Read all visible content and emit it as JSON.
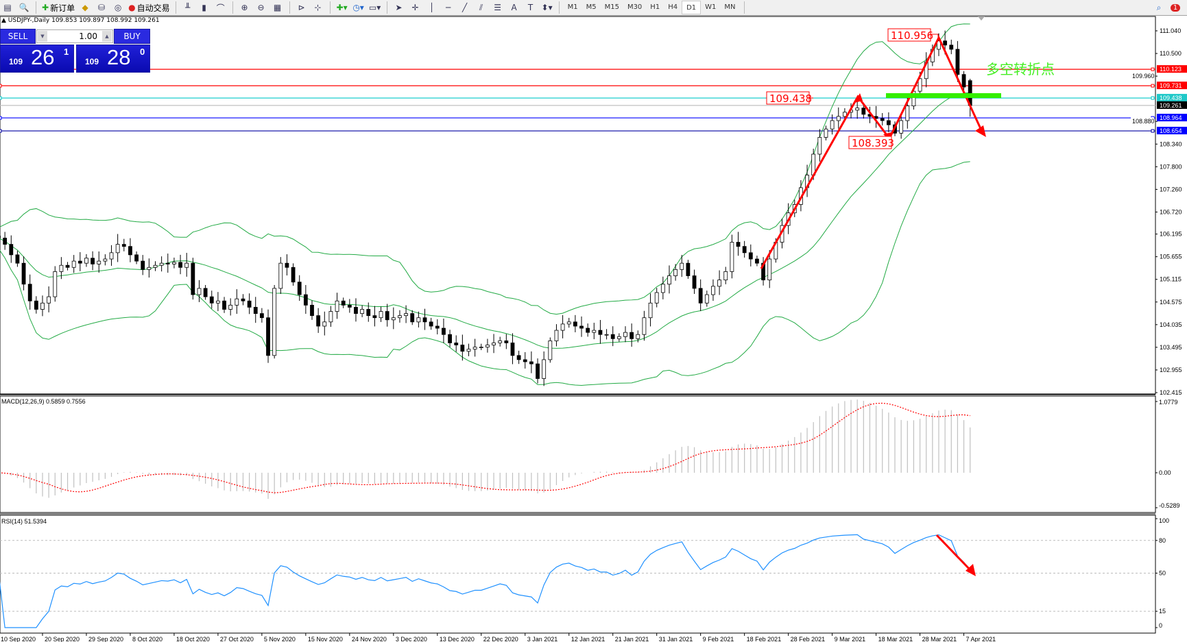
{
  "toolbar": {
    "new_order_label": "新订单",
    "auto_trading_label": "自动交易",
    "timeframes": [
      "M1",
      "M5",
      "M15",
      "M30",
      "H1",
      "H4",
      "D1",
      "W1",
      "MN"
    ],
    "active_timeframe": "D1",
    "notification_count": "1"
  },
  "chart_header": {
    "symbol": "USDJPY-,Daily",
    "ohlc": "109.853 109.897 108.992 109.261"
  },
  "one_click": {
    "sell_label": "SELL",
    "buy_label": "BUY",
    "lots": "1.00",
    "sell_price": {
      "small": "109",
      "big": "26",
      "frac": "1"
    },
    "buy_price": {
      "small": "109",
      "big": "28",
      "frac": "0"
    }
  },
  "price_chart": {
    "closes": [
      106.1,
      105.95,
      105.7,
      105.5,
      105.0,
      104.6,
      104.4,
      104.55,
      104.7,
      105.3,
      105.45,
      105.4,
      105.55,
      105.5,
      105.62,
      105.48,
      105.55,
      105.6,
      105.75,
      105.95,
      105.9,
      105.7,
      105.55,
      105.35,
      105.4,
      105.45,
      105.5,
      105.48,
      105.52,
      105.4,
      105.5,
      104.75,
      104.9,
      104.7,
      104.55,
      104.6,
      104.4,
      104.5,
      104.65,
      104.6,
      104.45,
      104.3,
      104.2,
      103.3,
      104.9,
      105.5,
      105.4,
      105.05,
      104.75,
      104.5,
      104.25,
      104.0,
      104.1,
      104.35,
      104.6,
      104.5,
      104.45,
      104.3,
      104.4,
      104.25,
      104.2,
      104.35,
      104.15,
      104.2,
      104.25,
      104.3,
      104.1,
      104.2,
      104.1,
      104.0,
      103.95,
      103.8,
      103.6,
      103.55,
      103.4,
      103.45,
      103.5,
      103.5,
      103.55,
      103.6,
      103.65,
      103.6,
      103.3,
      103.2,
      103.15,
      103.1,
      102.75,
      103.2,
      103.65,
      103.9,
      104.05,
      104.1,
      104.0,
      103.95,
      103.85,
      103.9,
      103.8,
      103.8,
      103.7,
      103.75,
      103.85,
      103.7,
      103.8,
      104.2,
      104.55,
      104.8,
      105.0,
      105.2,
      105.35,
      105.5,
      105.2,
      104.9,
      104.55,
      104.75,
      104.95,
      105.1,
      105.3,
      106.0,
      105.9,
      105.75,
      105.6,
      105.5,
      105.1,
      105.6,
      106.0,
      106.4,
      106.7,
      106.9,
      107.3,
      107.6,
      108.1,
      108.5,
      108.7,
      108.9,
      109.0,
      109.1,
      109.15,
      109.2,
      109.05,
      109.0,
      108.95,
      108.9,
      108.8,
      108.6,
      108.9,
      109.25,
      109.6,
      109.9,
      110.3,
      110.6,
      110.8,
      110.7,
      110.6,
      110.0,
      109.7,
      109.261
    ],
    "last_bar": {
      "open": 109.853,
      "high": 109.897,
      "low": 108.992,
      "close": 109.261
    },
    "price_ticks": [
      "111.040",
      "110.500",
      "109.960",
      "108.880",
      "108.340",
      "107.800",
      "107.260",
      "106.720",
      "106.195",
      "105.655",
      "105.115",
      "104.575",
      "104.035",
      "103.495",
      "102.955",
      "102.415"
    ],
    "price_range": [
      102.415,
      111.04
    ],
    "horizontal_lines": [
      {
        "value": "110.123",
        "color": "#ff0000",
        "label_bg": "#ff0000"
      },
      {
        "value": "109.731",
        "color": "#ff0000",
        "label_bg": "#ff0000"
      },
      {
        "value": "109.438",
        "color": "#00c8c8",
        "label_bg": "#20c8c8"
      },
      {
        "value": "109.261",
        "color": "#c0c0c0",
        "label_bg": "#000000"
      },
      {
        "value": "108.964",
        "color": "#0000ff",
        "label_bg": "#0000ff"
      },
      {
        "value": "108.654",
        "color": "#0000a0",
        "label_bg": "#0000ff"
      }
    ],
    "annotations": {
      "peak_label": "110.956",
      "neckline_label": "109.438",
      "trough_label": "108.393",
      "turning_point_text": "多空转折点"
    },
    "colors": {
      "bands": "#22aa44",
      "arrow": "#ff0000",
      "turning_line": "#33ee00",
      "turning_text": "#44ee22"
    }
  },
  "macd": {
    "label": "MACD(12,26,9) 0.5859 0.7556",
    "ticks": [
      "1.0779",
      "0.00",
      "-0.5289"
    ],
    "range": [
      -0.5289,
      1.0779
    ],
    "colors": {
      "histogram": "#c0c0c0",
      "signal": "#ff0000"
    }
  },
  "rsi": {
    "label": "RSI(14) 51.5394",
    "ticks": [
      "100",
      "80",
      "50",
      "15",
      "0"
    ],
    "levels": [
      80,
      50,
      15
    ],
    "color": "#1e90ff"
  },
  "date_axis": {
    "labels": [
      "10 Sep 2020",
      "20 Sep 2020",
      "29 Sep 2020",
      "8 Oct 2020",
      "18 Oct 2020",
      "27 Oct 2020",
      "5 Nov 2020",
      "15 Nov 2020",
      "24 Nov 2020",
      "3 Dec 2020",
      "13 Dec 2020",
      "22 Dec 2020",
      "3 Jan 2021",
      "12 Jan 2021",
      "21 Jan 2021",
      "31 Jan 2021",
      "9 Feb 2021",
      "18 Feb 2021",
      "28 Feb 2021",
      "9 Mar 2021",
      "18 Mar 2021",
      "28 Mar 2021",
      "7 Apr 2021"
    ]
  }
}
